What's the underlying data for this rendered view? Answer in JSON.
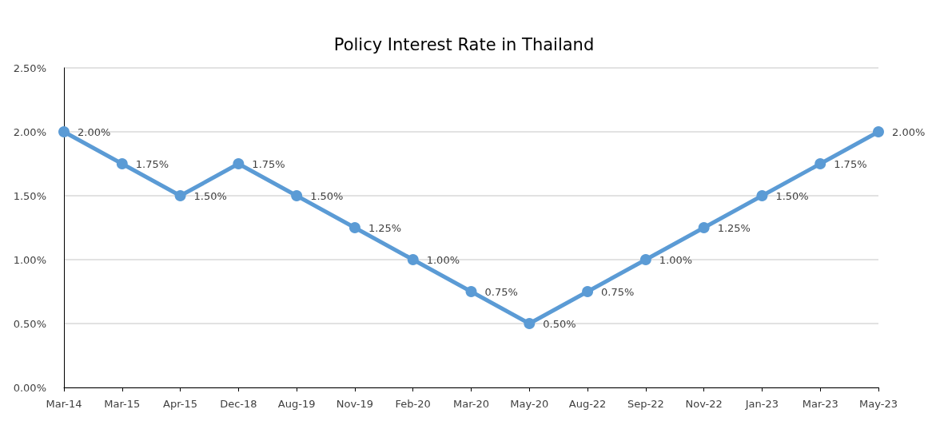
{
  "chart_data": {
    "type": "line",
    "title": "Policy Interest Rate in Thailand",
    "categories": [
      "Mar-14",
      "Mar-15",
      "Apr-15",
      "Dec-18",
      "Aug-19",
      "Nov-19",
      "Feb-20",
      "Mar-20",
      "May-20",
      "Aug-22",
      "Sep-22",
      "Nov-22",
      "Jan-23",
      "Mar-23",
      "May-23"
    ],
    "series": [
      {
        "color": "#5b9bd5",
        "values": [
          2.0,
          1.75,
          1.5,
          1.75,
          1.5,
          1.25,
          1.0,
          0.75,
          0.5,
          0.75,
          1.0,
          1.25,
          1.5,
          1.75,
          2.0
        ],
        "value_labels": [
          "2.00%",
          "1.75%",
          "1.50%",
          "1.75%",
          "1.50%",
          "1.25%",
          "1.00%",
          "0.75%",
          "0.50%",
          "0.75%",
          "1.00%",
          "1.25%",
          "1.50%",
          "1.75%",
          "2.00%"
        ]
      }
    ],
    "ylim": [
      0,
      2.5
    ],
    "yticks": [
      {
        "value": 0,
        "label": "0.00%"
      },
      {
        "value": 0.5,
        "label": "0.50%"
      },
      {
        "value": 1,
        "label": "1.00%"
      },
      {
        "value": 1.5,
        "label": "1.50%"
      },
      {
        "value": 2,
        "label": "2.00%"
      },
      {
        "value": 2.5,
        "label": "2.50%"
      }
    ],
    "grid": "y",
    "marker": "circle",
    "line_style": "solid"
  }
}
